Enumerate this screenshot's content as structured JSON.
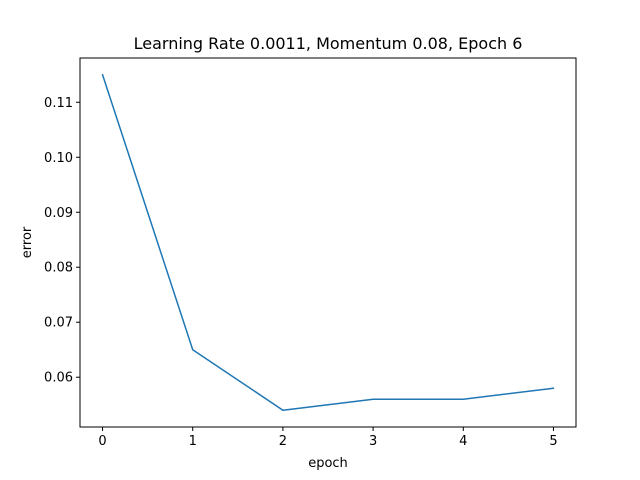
{
  "chart_data": {
    "type": "line",
    "title": "Learning Rate 0.0011, Momentum 0.08, Epoch 6",
    "xlabel": "epoch",
    "ylabel": "error",
    "x": [
      0,
      1,
      2,
      3,
      4,
      5
    ],
    "series": [
      {
        "values": [
          0.115,
          0.065,
          0.054,
          0.056,
          0.056,
          0.058
        ],
        "color": "#1f77b4"
      }
    ],
    "xticks": [
      "0",
      "1",
      "2",
      "3",
      "4",
      "5"
    ],
    "yticks": [
      "0.06",
      "0.07",
      "0.08",
      "0.09",
      "0.10",
      "0.11"
    ],
    "xlim": [
      -0.25,
      5.25
    ],
    "ylim": [
      0.05095,
      0.11805
    ],
    "grid": false,
    "legend": "none"
  }
}
